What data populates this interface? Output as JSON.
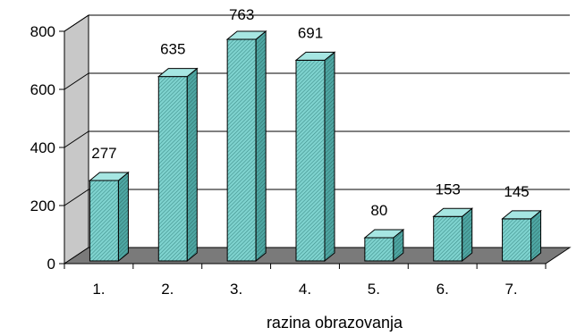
{
  "chart_data": {
    "type": "bar",
    "three_d": true,
    "categories": [
      "1.",
      "2.",
      "3.",
      "4.",
      "5.",
      "6.",
      "7."
    ],
    "values": [
      277,
      635,
      763,
      691,
      80,
      153,
      145
    ],
    "data_labels": [
      "277",
      "635",
      "763",
      "691",
      "80",
      "153",
      "145"
    ],
    "xlabel": "razina obrazovanja",
    "ylabel": "",
    "ylim": [
      0,
      800
    ],
    "yticks": [
      0,
      200,
      400,
      600,
      800
    ],
    "ytick_labels": [
      "0",
      "200",
      "400",
      "600",
      "800"
    ],
    "grid": true,
    "legend": "none",
    "colors": {
      "bar_front": "#7fd3cf",
      "bar_side": "#4fa8a4",
      "bar_top": "#a6e6e2",
      "hatch": "#3f8f8b",
      "wall": "#c8c8c8",
      "floor": "#7a7a7a",
      "grid": "#000000"
    }
  }
}
